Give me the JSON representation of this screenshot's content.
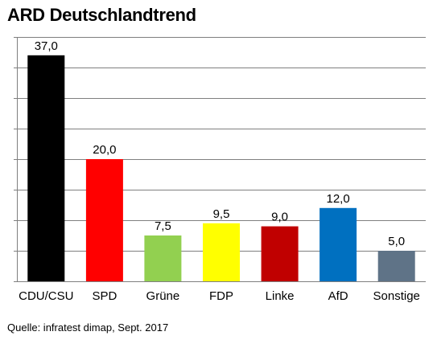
{
  "chart_data": {
    "type": "bar",
    "title": "ARD Deutschlandtrend",
    "source": "Quelle: infratest dimap, Sept. 2017",
    "categories": [
      "CDU/CSU",
      "SPD",
      "Grüne",
      "FDP",
      "Linke",
      "AfD",
      "Sonstige"
    ],
    "values": [
      37.0,
      20.0,
      7.5,
      9.5,
      9.0,
      12.0,
      5.0
    ],
    "value_labels": [
      "37,0",
      "20,0",
      "7,5",
      "9,5",
      "9,0",
      "12,0",
      "5,0"
    ],
    "colors": [
      "#000000",
      "#ff0000",
      "#92d050",
      "#ffff00",
      "#c00000",
      "#0070c0",
      "#5f7387"
    ],
    "ylim": [
      0,
      40
    ],
    "grid": true,
    "xlabel": "",
    "ylabel": ""
  }
}
